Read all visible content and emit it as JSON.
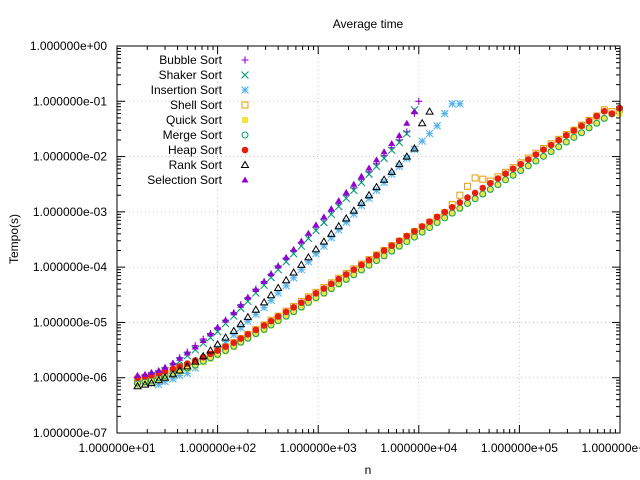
{
  "chart_data": {
    "type": "scatter",
    "title": "Average time",
    "xlabel": "n",
    "ylabel": "Tempo(s)",
    "xscale": "log",
    "yscale": "log",
    "xlim": [
      10,
      1000000
    ],
    "ylim": [
      1e-07,
      1
    ],
    "grid": true,
    "legend_position": "top-left",
    "x_ticks": [
      10,
      100,
      1000,
      10000,
      100000,
      1000000
    ],
    "x_tick_labels": [
      "1.000000e+01",
      "1.000000e+02",
      "1.000000e+03",
      "1.000000e+04",
      "1.000000e+05",
      "1.000000e+06"
    ],
    "y_ticks": [
      1e-07,
      1e-06,
      1e-05,
      0.0001,
      0.001,
      0.01,
      0.1,
      1
    ],
    "y_tick_labels": [
      "1.000000e-07",
      "1.000000e-06",
      "1.000000e-05",
      "1.000000e-04",
      "1.000000e-03",
      "1.000000e-02",
      "1.000000e-01",
      "1.000000e+00"
    ],
    "series": [
      {
        "name": "Bubble Sort",
        "marker": "plus",
        "color": "#9400d3",
        "x": [
          16,
          19,
          22,
          26,
          30,
          36,
          42,
          50,
          60,
          72,
          85,
          100,
          120,
          145,
          170,
          200,
          240,
          290,
          340,
          400,
          480,
          570,
          680,
          800,
          950,
          1140,
          1350,
          1600,
          1900,
          2260,
          2690,
          3200,
          3800,
          4520,
          5380,
          6400,
          7600,
          9050,
          10000
        ],
        "y": [
          1e-06,
          1.1e-06,
          1.2e-06,
          1.3e-06,
          1.5e-06,
          1.8e-06,
          2.3e-06,
          2.9e-06,
          3.8e-06,
          5e-06,
          6.3e-06,
          8e-06,
          1.1e-05,
          1.5e-05,
          2.1e-05,
          2.8e-05,
          4e-05,
          5.5e-05,
          7.5e-05,
          0.000105,
          0.000145,
          0.0002,
          0.00028,
          0.00038,
          0.00053,
          0.00074,
          0.00102,
          0.0014,
          0.002,
          0.0027,
          0.0039,
          0.0053,
          0.0074,
          0.0104,
          0.0145,
          0.02,
          0.028,
          0.06,
          0.1
        ]
      },
      {
        "name": "Shaker Sort",
        "marker": "cross",
        "color": "#009e73",
        "x": [
          16,
          19,
          22,
          26,
          30,
          36,
          42,
          50,
          60,
          72,
          85,
          100,
          120,
          145,
          170,
          200,
          240,
          290,
          340,
          400,
          480,
          570,
          680,
          800,
          950,
          1140,
          1350,
          1600,
          1900,
          2260,
          2690,
          3200,
          3800,
          4520,
          5380,
          6400,
          7600,
          9050
        ],
        "y": [
          9e-07,
          1e-06,
          1.1e-06,
          1.2e-06,
          1.35e-06,
          1.6e-06,
          2e-06,
          2.5e-06,
          3.2e-06,
          4.2e-06,
          5.3e-06,
          6.8e-06,
          9.5e-06,
          1.3e-05,
          1.8e-05,
          2.4e-05,
          3.4e-05,
          4.7e-05,
          6.5e-05,
          9e-05,
          0.000125,
          0.000175,
          0.00024,
          0.00033,
          0.00046,
          0.00064,
          0.0009,
          0.00125,
          0.00175,
          0.00245,
          0.0034,
          0.0048,
          0.0066,
          0.0093,
          0.013,
          0.018,
          0.026,
          0.07
        ]
      },
      {
        "name": "Insertion Sort",
        "marker": "star",
        "color": "#56b4e9",
        "x": [
          16,
          19,
          22,
          26,
          30,
          36,
          42,
          50,
          60,
          72,
          85,
          100,
          120,
          145,
          170,
          200,
          240,
          290,
          340,
          400,
          480,
          570,
          680,
          800,
          950,
          1140,
          1350,
          1600,
          1900,
          2260,
          2690,
          3200,
          3800,
          4520,
          5380,
          6400,
          7600,
          9050,
          10800,
          12800,
          15200,
          18100,
          21500,
          25600
        ],
        "y": [
          7.5e-07,
          8e-07,
          8e-07,
          7.5e-07,
          8.5e-07,
          9.5e-07,
          1.1e-06,
          1.2e-06,
          1.5e-06,
          2e-06,
          2.6e-06,
          3.4e-06,
          4.5e-06,
          6e-06,
          8e-06,
          1.05e-05,
          1.4e-05,
          1.85e-05,
          2.5e-05,
          3.4e-05,
          4.6e-05,
          6.4e-05,
          9e-05,
          0.000125,
          0.000175,
          0.00024,
          0.00034,
          0.00047,
          0.00065,
          0.00091,
          0.0013,
          0.00175,
          0.00245,
          0.0034,
          0.0048,
          0.0066,
          0.0093,
          0.0135,
          0.019,
          0.026,
          0.036,
          0.06,
          0.09,
          0.09
        ]
      },
      {
        "name": "Shell Sort",
        "marker": "square-open",
        "color": "#e69f00",
        "x": [
          16,
          19,
          22,
          26,
          30,
          36,
          42,
          50,
          60,
          72,
          85,
          100,
          120,
          145,
          170,
          200,
          240,
          290,
          340,
          400,
          480,
          570,
          680,
          800,
          950,
          1140,
          1350,
          1600,
          1900,
          2260,
          2690,
          3200,
          3800,
          4520,
          5380,
          6400,
          7600,
          9050,
          10800,
          12800,
          15200,
          18100,
          21500,
          25600,
          30500,
          36300,
          43200,
          51400,
          61200,
          72800,
          86600,
          103000,
          122600,
          145900,
          173600,
          206600,
          245900,
          292600,
          348200,
          414400,
          493100,
          586800,
          698300,
          831000,
          989000
        ],
        "y": [
          8.5e-07,
          9e-07,
          1e-06,
          1.1e-06,
          1.2e-06,
          1.35e-06,
          1.5e-06,
          1.65e-06,
          1.9e-06,
          2.2e-06,
          2.6e-06,
          3e-06,
          3.6e-06,
          4.3e-06,
          5.1e-06,
          6.1e-06,
          7.4e-06,
          9e-06,
          1.1e-05,
          1.3e-05,
          1.6e-05,
          1.95e-05,
          2.4e-05,
          2.9e-05,
          3.5e-05,
          4.3e-05,
          5.2e-05,
          6.3e-05,
          7.7e-05,
          9.3e-05,
          0.000113,
          0.000137,
          0.000166,
          0.0002,
          0.000245,
          0.000295,
          0.00036,
          0.00044,
          0.00053,
          0.00065,
          0.00079,
          0.00096,
          0.00135,
          0.002,
          0.0029,
          0.0041,
          0.0039,
          0.0036,
          0.0043,
          0.0052,
          0.0063,
          0.0077,
          0.0094,
          0.0115,
          0.014,
          0.017,
          0.0205,
          0.025,
          0.03,
          0.037,
          0.045,
          0.054,
          0.07,
          0.065,
          0.07
        ]
      },
      {
        "name": "Quick Sort",
        "marker": "square-filled",
        "color": "#f0e442",
        "x": [
          16,
          19,
          22,
          26,
          30,
          36,
          42,
          50,
          60,
          72,
          85,
          100,
          120,
          145,
          170,
          200,
          240,
          290,
          340,
          400,
          480,
          570,
          680,
          800,
          950,
          1140,
          1350,
          1600,
          1900,
          2260,
          2690,
          3200,
          3800,
          4520,
          5380,
          6400,
          7600,
          9050,
          10800,
          12800,
          15200,
          18100,
          21500,
          25600,
          30500,
          36300,
          43200,
          51400,
          61200,
          72800,
          86600,
          103000,
          122600,
          145900,
          173600,
          206600,
          245900,
          292600,
          348200,
          414400,
          493100,
          586800,
          698300,
          831000,
          989000
        ],
        "y": [
          7.5e-07,
          8e-07,
          8.5e-07,
          9.5e-07,
          1.05e-06,
          1.15e-06,
          1.3e-06,
          1.45e-06,
          1.65e-06,
          1.9e-06,
          2.2e-06,
          2.55e-06,
          3e-06,
          3.6e-06,
          4.3e-06,
          5.1e-06,
          6.1e-06,
          7.3e-06,
          8.8e-06,
          1.05e-05,
          1.27e-05,
          1.53e-05,
          1.85e-05,
          2.25e-05,
          2.7e-05,
          3.3e-05,
          4e-05,
          4.85e-05,
          5.9e-05,
          7.2e-05,
          8.8e-05,
          0.000107,
          0.00013,
          0.00016,
          0.000195,
          0.000235,
          0.00029,
          0.00035,
          0.00043,
          0.00052,
          0.00064,
          0.00078,
          0.00095,
          0.00116,
          0.00142,
          0.00173,
          0.0021,
          0.00255,
          0.0031,
          0.0038,
          0.0046,
          0.0056,
          0.0068,
          0.0083,
          0.0101,
          0.0123,
          0.015,
          0.0183,
          0.0223,
          0.027,
          0.033,
          0.04,
          0.049,
          0.059,
          0.06
        ]
      },
      {
        "name": "Merge Sort",
        "marker": "circle-open",
        "color": "#009e73",
        "x": [
          16,
          19,
          22,
          26,
          30,
          36,
          42,
          50,
          60,
          72,
          85,
          100,
          120,
          145,
          170,
          200,
          240,
          290,
          340,
          400,
          480,
          570,
          680,
          800,
          950,
          1140,
          1350,
          1600,
          1900,
          2260,
          2690,
          3200,
          3800,
          4520,
          5380,
          6400,
          7600,
          9050,
          10800,
          12800,
          15200,
          18100,
          21500,
          25600,
          30500,
          36300,
          43200,
          51400,
          61200,
          72800,
          86600,
          103000,
          122600,
          145900,
          173600,
          206600,
          245900,
          292600,
          348200,
          414400,
          493100,
          586800,
          698300,
          831000,
          989000
        ],
        "y": [
          8e-07,
          8.5e-07,
          9e-07,
          1e-06,
          1.1e-06,
          1.2e-06,
          1.35e-06,
          1.5e-06,
          1.7e-06,
          2e-06,
          2.3e-06,
          2.65e-06,
          3.1e-06,
          3.7e-06,
          4.4e-06,
          5.2e-06,
          6.3e-06,
          7.5e-06,
          9e-06,
          1.08e-05,
          1.3e-05,
          1.57e-05,
          1.9e-05,
          2.3e-05,
          2.8e-05,
          3.4e-05,
          4.1e-05,
          5e-05,
          6e-05,
          7.3e-05,
          8.9e-05,
          0.000108,
          0.000132,
          0.00016,
          0.000195,
          0.00024,
          0.00029,
          0.00035,
          0.00043,
          0.00052,
          0.00064,
          0.00078,
          0.00095,
          0.00116,
          0.00142,
          0.00173,
          0.0021,
          0.00255,
          0.0031,
          0.0038,
          0.0046,
          0.0056,
          0.0068,
          0.0083,
          0.0101,
          0.0123,
          0.015,
          0.0183,
          0.0223,
          0.027,
          0.033,
          0.04,
          0.049,
          0.059,
          0.075
        ]
      },
      {
        "name": "Heap Sort",
        "marker": "circle-filled",
        "color": "#e51e10",
        "x": [
          16,
          19,
          22,
          26,
          30,
          36,
          42,
          50,
          60,
          72,
          85,
          100,
          120,
          145,
          170,
          200,
          240,
          290,
          340,
          400,
          480,
          570,
          680,
          800,
          950,
          1140,
          1350,
          1600,
          1900,
          2260,
          2690,
          3200,
          3800,
          4520,
          5380,
          6400,
          7600,
          9050,
          10800,
          12800,
          15200,
          18100,
          21500,
          25600,
          30500,
          36300,
          43200,
          51400,
          61200,
          72800,
          86600,
          103000,
          122600,
          145900,
          173600,
          206600,
          245900,
          292600,
          348200,
          414400,
          493100,
          586800,
          698300,
          831000,
          989000
        ],
        "y": [
          1e-06,
          1.05e-06,
          1.1e-06,
          1.2e-06,
          1.3e-06,
          1.45e-06,
          1.6e-06,
          1.8e-06,
          2.05e-06,
          2.35e-06,
          2.7e-06,
          3.1e-06,
          3.65e-06,
          4.3e-06,
          5.1e-06,
          6.1e-06,
          7.3e-06,
          8.8e-06,
          1.06e-05,
          1.28e-05,
          1.55e-05,
          1.88e-05,
          2.28e-05,
          2.77e-05,
          3.36e-05,
          4.1e-05,
          5e-05,
          6.1e-05,
          7.4e-05,
          9e-05,
          0.00011,
          0.000134,
          0.000164,
          0.0002,
          0.000245,
          0.0003,
          0.000365,
          0.000445,
          0.000545,
          0.000665,
          0.00081,
          0.00099,
          0.00121,
          0.00148,
          0.00181,
          0.0022,
          0.0027,
          0.0033,
          0.004,
          0.0049,
          0.006,
          0.0073,
          0.0089,
          0.0109,
          0.0133,
          0.0162,
          0.0198,
          0.0242,
          0.0295,
          0.036,
          0.044,
          0.054,
          0.066,
          0.06,
          0.075
        ]
      },
      {
        "name": "Rank Sort",
        "marker": "triangle-open",
        "color": "#000000",
        "x": [
          16,
          19,
          22,
          26,
          30,
          36,
          42,
          50,
          60,
          72,
          85,
          100,
          120,
          145,
          170,
          200,
          240,
          290,
          340,
          400,
          480,
          570,
          680,
          800,
          950,
          1140,
          1350,
          1600,
          1900,
          2260,
          2690,
          3200,
          3800,
          4520,
          5380,
          6400,
          7600,
          9050,
          10800,
          12800
        ],
        "y": [
          7e-07,
          7.5e-07,
          8e-07,
          9e-07,
          1e-06,
          1.15e-06,
          1.35e-06,
          1.6e-06,
          1.95e-06,
          2.45e-06,
          3.1e-06,
          4e-06,
          5.3e-06,
          7e-06,
          9.3e-06,
          1.25e-05,
          1.7e-05,
          2.3e-05,
          3.1e-05,
          4.2e-05,
          5.8e-05,
          8e-05,
          0.00011,
          0.00015,
          0.00021,
          0.00029,
          0.0004,
          0.00055,
          0.00076,
          0.00105,
          0.00145,
          0.002,
          0.0028,
          0.0038,
          0.0053,
          0.0073,
          0.01,
          0.014,
          0.04,
          0.065
        ]
      },
      {
        "name": "Selection Sort",
        "marker": "triangle-filled",
        "color": "#9400d3",
        "x": [
          16,
          19,
          22,
          26,
          30,
          36,
          42,
          50,
          60,
          72,
          85,
          100,
          120,
          145,
          170,
          200,
          240,
          290,
          340,
          400,
          480,
          570,
          680,
          800,
          950,
          1140,
          1350,
          1600,
          1900,
          2260,
          2690,
          3200,
          3800,
          4520,
          5380,
          6400,
          7600,
          9050
        ],
        "y": [
          1.1e-06,
          1.15e-06,
          1.25e-06,
          1.35e-06,
          1.55e-06,
          1.85e-06,
          2.25e-06,
          2.8e-06,
          3.6e-06,
          4.7e-06,
          6.2e-06,
          8.2e-06,
          1.1e-05,
          1.5e-05,
          2.05e-05,
          2.85e-05,
          3.95e-05,
          5.5e-05,
          7.6e-05,
          0.000105,
          0.00015,
          0.00021,
          0.000295,
          0.00041,
          0.00058,
          0.00081,
          0.00114,
          0.0016,
          0.00225,
          0.00315,
          0.0044,
          0.0062,
          0.0087,
          0.0122,
          0.0172,
          0.024,
          0.04,
          0.065
        ]
      }
    ]
  }
}
